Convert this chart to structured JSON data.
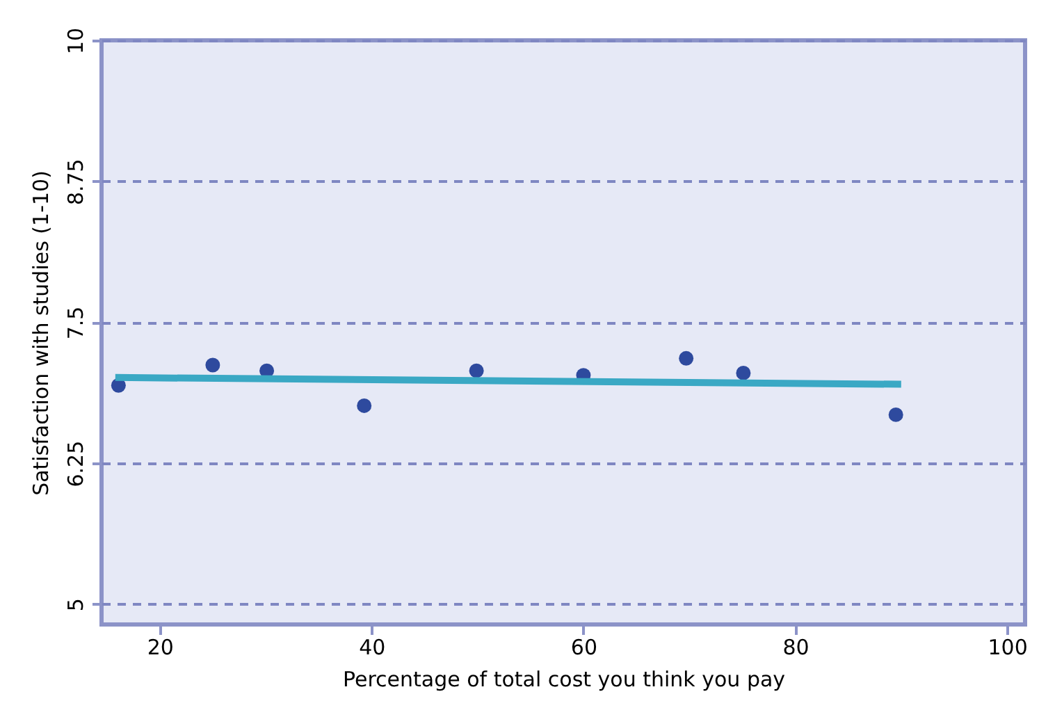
{
  "chart_data": {
    "type": "scatter",
    "xlabel": "Percentage of total cost you think you pay",
    "ylabel": "Satisfaction with studies (1-10)",
    "xlim": [
      14.5,
      101.7
    ],
    "xticks": [
      20,
      40,
      60,
      80,
      100
    ],
    "ylim": [
      4.82,
      10
    ],
    "yticks": [
      5,
      6.25,
      7.5,
      8.75,
      10
    ],
    "grid": "y",
    "series": [
      {
        "marker": "circle",
        "color": "#2e4a9e",
        "x": [
          16.1,
          25.0,
          30.1,
          39.3,
          49.9,
          60.0,
          69.7,
          75.1,
          89.5
        ],
        "values": [
          6.94,
          7.12,
          7.07,
          6.76,
          7.07,
          7.03,
          7.18,
          7.05,
          6.68
        ]
      },
      {
        "type": "line",
        "color": "#3aa8c4",
        "x": [
          15.8,
          90.0
        ],
        "values": [
          7.01,
          6.95
        ]
      }
    ]
  }
}
